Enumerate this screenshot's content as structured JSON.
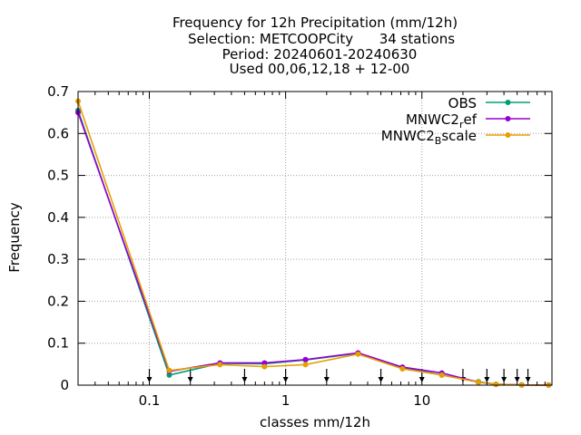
{
  "chart_data": {
    "type": "line",
    "title_lines": [
      "Frequency  for 12h Precipitation (mm/12h)",
      "Selection: METCOOPCity      34 stations",
      "Period: 20240601-20240630",
      "Used 00,06,12,18 + 12-00"
    ],
    "xlabel": "classes mm/12h",
    "ylabel": "Frequency",
    "x_scale": "log",
    "xlim": [
      0.03,
      90
    ],
    "ylim": [
      0,
      0.7
    ],
    "x_ticks": [
      {
        "value": 0.1,
        "label": "0.1"
      },
      {
        "value": 1,
        "label": "1"
      },
      {
        "value": 10,
        "label": "10"
      }
    ],
    "y_ticks": [
      {
        "value": 0,
        "label": "0"
      },
      {
        "value": 0.1,
        "label": "0.1"
      },
      {
        "value": 0.2,
        "label": "0.2"
      },
      {
        "value": 0.3,
        "label": "0.3"
      },
      {
        "value": 0.4,
        "label": "0.4"
      },
      {
        "value": 0.5,
        "label": "0.5"
      },
      {
        "value": 0.6,
        "label": "0.6"
      },
      {
        "value": 0.7,
        "label": "0.7"
      }
    ],
    "grid": true,
    "legend_position": "top-right",
    "class_limits": [
      0.1,
      0.2,
      0.5,
      1,
      2,
      5,
      10,
      20,
      30,
      40,
      50,
      60
    ],
    "x": [
      0.03,
      0.14,
      0.33,
      0.7,
      1.4,
      3.4,
      7.2,
      14,
      26,
      35,
      54,
      85
    ],
    "series": [
      {
        "name": "OBS",
        "color": "#009e73",
        "values": [
          0.655,
          0.024,
          0.052,
          0.051,
          0.06,
          0.076,
          0.042,
          0.024,
          0.008,
          0.002,
          0.0005,
          0.0002
        ]
      },
      {
        "name_parts": [
          "MNWC2",
          "r",
          "ef"
        ],
        "color": "#9400d3",
        "values": [
          0.65,
          0.033,
          0.053,
          0.053,
          0.061,
          0.077,
          0.043,
          0.029,
          0.007,
          0.002,
          0.0005,
          0.0002
        ]
      },
      {
        "name_parts": [
          "MNWC2",
          "B",
          "scale"
        ],
        "color": "#e69f00",
        "values": [
          0.677,
          0.035,
          0.049,
          0.044,
          0.049,
          0.074,
          0.039,
          0.024,
          0.007,
          0.002,
          0.0004,
          0.0001
        ]
      }
    ]
  }
}
